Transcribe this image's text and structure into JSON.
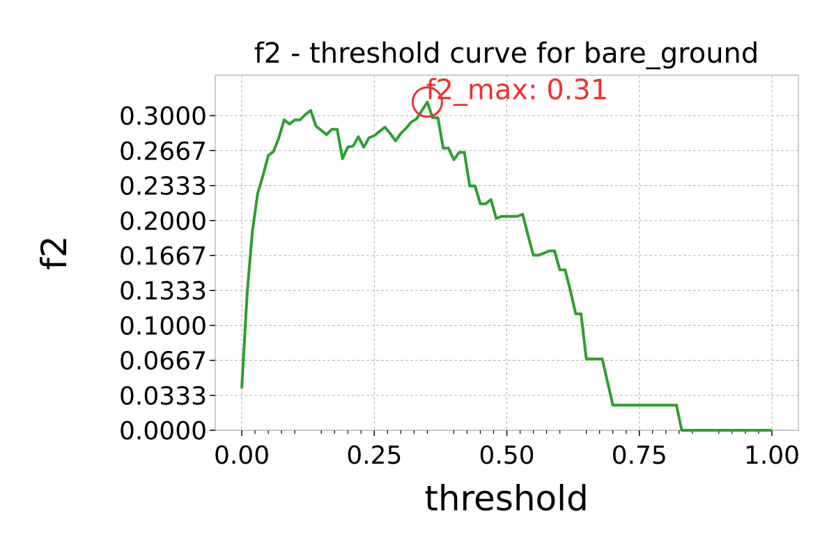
{
  "chart_data": {
    "type": "line",
    "title": "f2 - threshold curve for bare_ground",
    "xlabel": "threshold",
    "ylabel": "f2",
    "xlim": [
      -0.05,
      1.05
    ],
    "ylim": [
      0.0,
      0.3386
    ],
    "xticks": [
      0.0,
      0.25,
      0.5,
      0.75,
      1.0
    ],
    "xtick_labels": [
      "0.00",
      "0.25",
      "0.50",
      "0.75",
      "1.00"
    ],
    "yticks": [
      0.0,
      0.0333,
      0.0667,
      0.1,
      0.1333,
      0.1667,
      0.2,
      0.2333,
      0.2667,
      0.3
    ],
    "ytick_labels": [
      "0.0000",
      "0.0333",
      "0.0667",
      "0.1000",
      "0.1333",
      "0.1667",
      "0.2000",
      "0.2333",
      "0.2667",
      "0.3000"
    ],
    "grid": true,
    "line_color": "#2ca02c",
    "annotation": {
      "text": "f2_max: 0.31",
      "x": 0.35,
      "y": 0.313,
      "color": "#f03030"
    },
    "series": [
      {
        "x": [
          0.0,
          0.01,
          0.02,
          0.03,
          0.04,
          0.05,
          0.06,
          0.07,
          0.08,
          0.09,
          0.1,
          0.11,
          0.12,
          0.13,
          0.14,
          0.15,
          0.16,
          0.17,
          0.18,
          0.19,
          0.2,
          0.21,
          0.22,
          0.23,
          0.24,
          0.25,
          0.26,
          0.27,
          0.28,
          0.29,
          0.3,
          0.31,
          0.32,
          0.33,
          0.34,
          0.35,
          0.36,
          0.37,
          0.38,
          0.39,
          0.4,
          0.41,
          0.42,
          0.43,
          0.44,
          0.45,
          0.46,
          0.47,
          0.48,
          0.49,
          0.5,
          0.51,
          0.52,
          0.53,
          0.54,
          0.55,
          0.56,
          0.57,
          0.58,
          0.59,
          0.6,
          0.61,
          0.62,
          0.63,
          0.64,
          0.65,
          0.66,
          0.67,
          0.68,
          0.69,
          0.7,
          0.71,
          0.72,
          0.73,
          0.74,
          0.75,
          0.76,
          0.77,
          0.78,
          0.79,
          0.8,
          0.81,
          0.82,
          0.83,
          0.84,
          0.85,
          0.86,
          0.87,
          0.88,
          0.89,
          0.9,
          0.91,
          0.92,
          0.93,
          0.94,
          0.95,
          0.96,
          0.97,
          0.98,
          0.99,
          1.0
        ],
        "values": [
          0.04,
          0.13,
          0.19,
          0.226,
          0.243,
          0.262,
          0.266,
          0.279,
          0.296,
          0.292,
          0.296,
          0.296,
          0.301,
          0.305,
          0.29,
          0.286,
          0.282,
          0.287,
          0.287,
          0.259,
          0.27,
          0.271,
          0.28,
          0.27,
          0.279,
          0.281,
          0.285,
          0.289,
          0.283,
          0.276,
          0.283,
          0.288,
          0.294,
          0.297,
          0.305,
          0.313,
          0.298,
          0.298,
          0.269,
          0.269,
          0.258,
          0.265,
          0.265,
          0.233,
          0.233,
          0.216,
          0.216,
          0.22,
          0.202,
          0.204,
          0.204,
          0.204,
          0.204,
          0.206,
          0.186,
          0.167,
          0.167,
          0.169,
          0.171,
          0.171,
          0.153,
          0.153,
          0.133,
          0.111,
          0.111,
          0.068,
          0.068,
          0.068,
          0.068,
          0.046,
          0.024,
          0.024,
          0.024,
          0.024,
          0.024,
          0.024,
          0.024,
          0.024,
          0.024,
          0.024,
          0.024,
          0.024,
          0.024,
          0.0,
          0.0,
          0.0,
          0.0,
          0.0,
          0.0,
          0.0,
          0.0,
          0.0,
          0.0,
          0.0,
          0.0,
          0.0,
          0.0,
          0.0,
          0.0,
          0.0,
          0.0
        ]
      }
    ]
  }
}
